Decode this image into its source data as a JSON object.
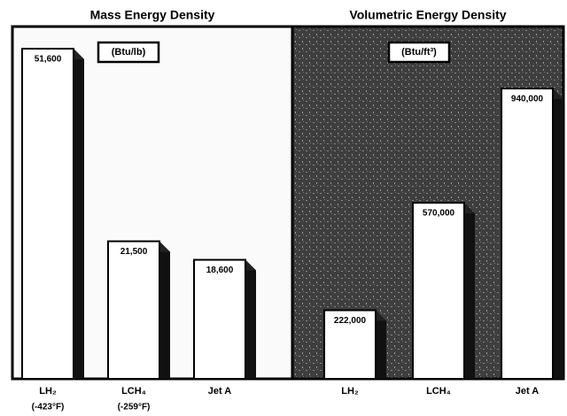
{
  "chart_data": [
    {
      "type": "bar",
      "title": "Mass Energy Density",
      "unit": "(Btu/lb)",
      "categories": [
        "LH₂",
        "LCH₄",
        "Jet A"
      ],
      "temperatures": [
        "(-423°F)",
        "(-259°F)"
      ],
      "values": [
        51600,
        21500,
        18600
      ],
      "value_labels": [
        "51,600",
        "21,500",
        "18,600"
      ],
      "color": "#ffffff"
    },
    {
      "type": "bar",
      "title": "Volumetric Energy Density",
      "unit": "(Btu/ft³)",
      "categories": [
        "LH₂",
        "LCH₄",
        "Jet A"
      ],
      "values": [
        222000,
        570000,
        940000
      ],
      "value_labels": [
        "222,000",
        "570,000",
        "940,000"
      ],
      "color": "#ffffff"
    }
  ]
}
